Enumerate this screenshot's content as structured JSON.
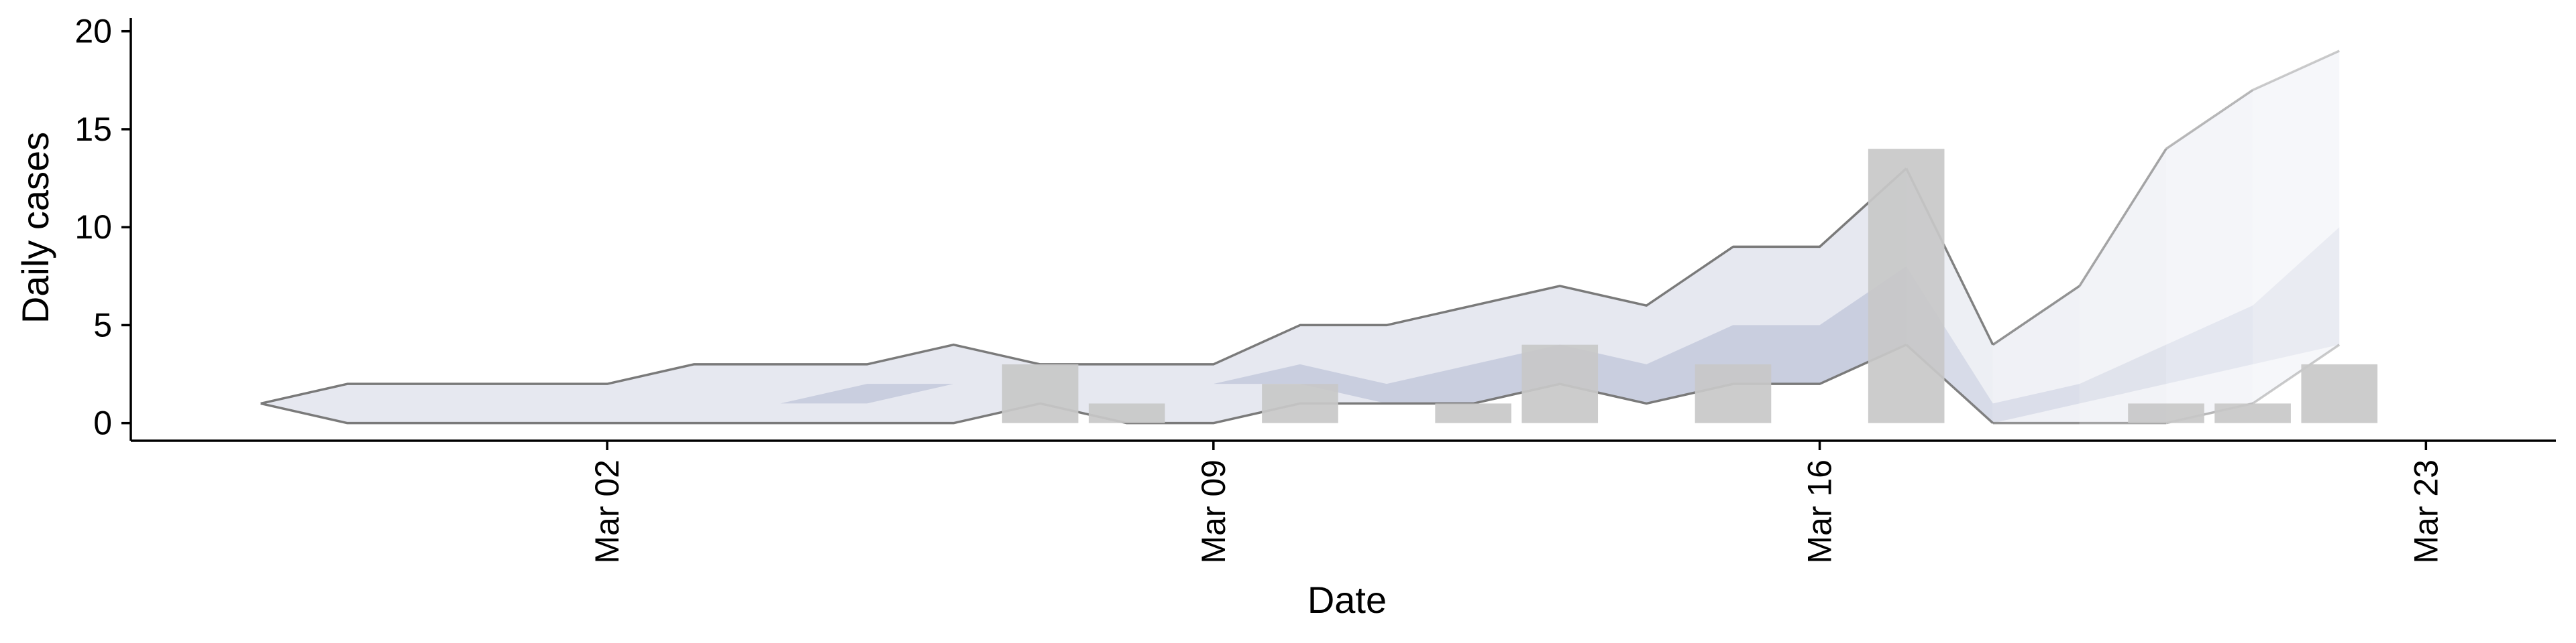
{
  "chart_data": {
    "type": "bar",
    "title": "",
    "xlabel": "Date",
    "ylabel": "Daily cases",
    "ylim": [
      -0.9,
      20.4
    ],
    "xlim": [
      "2020-02-25T12:00",
      "2020-03-24T12:00"
    ],
    "yticks": [
      0,
      5,
      10,
      15,
      20
    ],
    "xticks": [
      {
        "label": "Mar 02",
        "date": "2020-03-02"
      },
      {
        "label": "Mar 09",
        "date": "2020-03-09"
      },
      {
        "label": "Mar 16",
        "date": "2020-03-16"
      },
      {
        "label": "Mar 23",
        "date": "2020-03-23"
      }
    ],
    "x_label_rotation": "vertical",
    "grid": false,
    "legend": "none",
    "bars": {
      "color": "#c8c8c8",
      "x": [
        "2020-03-07",
        "2020-03-08",
        "2020-03-10",
        "2020-03-12",
        "2020-03-13",
        "2020-03-15",
        "2020-03-17",
        "2020-03-20",
        "2020-03-21",
        "2020-03-22"
      ],
      "values": [
        3,
        1,
        2,
        1,
        4,
        3,
        14,
        1,
        1,
        3
      ]
    },
    "bands": {
      "x": [
        "2020-02-27",
        "2020-02-28",
        "2020-02-29",
        "2020-03-01",
        "2020-03-02",
        "2020-03-03",
        "2020-03-04",
        "2020-03-05",
        "2020-03-06",
        "2020-03-07",
        "2020-03-08",
        "2020-03-09",
        "2020-03-10",
        "2020-03-11",
        "2020-03-12",
        "2020-03-13",
        "2020-03-14",
        "2020-03-15",
        "2020-03-16",
        "2020-03-17",
        "2020-03-18",
        "2020-03-19",
        "2020-03-20",
        "2020-03-21",
        "2020-03-22"
      ],
      "nowcast_start": "2020-03-18",
      "lower_outer": [
        1,
        0,
        0,
        0,
        0,
        0,
        0,
        0,
        0,
        1,
        0,
        0,
        1,
        1,
        1,
        2,
        1,
        2,
        2,
        4,
        0,
        0,
        0,
        1,
        4
      ],
      "lower_inner": [
        1,
        1,
        1,
        1,
        1,
        1,
        1,
        1,
        2,
        2,
        2,
        2,
        2,
        1,
        1,
        2,
        1,
        2,
        2,
        4,
        0,
        1,
        2,
        3,
        4
      ],
      "upper_inner": [
        1,
        1,
        1,
        1,
        1,
        1,
        1,
        2,
        2,
        2,
        2,
        2,
        3,
        2,
        3,
        4,
        3,
        5,
        5,
        8,
        1,
        2,
        4,
        6,
        10
      ],
      "upper_outer": [
        1,
        2,
        2,
        2,
        2,
        3,
        3,
        3,
        4,
        3,
        3,
        3,
        5,
        5,
        6,
        7,
        6,
        9,
        9,
        13,
        4,
        7,
        14,
        17,
        19
      ],
      "outer_color": "#e6e8f0",
      "inner_color": "#c3c9dc",
      "outline_color": "#7a7a7a"
    }
  }
}
